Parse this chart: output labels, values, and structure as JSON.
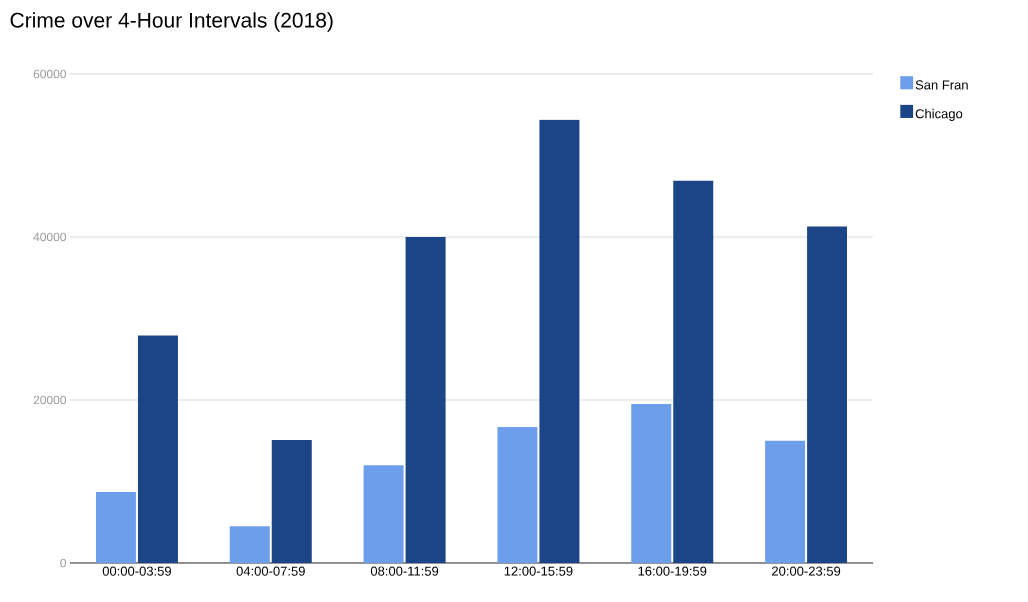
{
  "chart_data": {
    "type": "bar",
    "title": "Crime over 4-Hour Intervals (2018)",
    "categories": [
      "00:00-03:59",
      "04:00-07:59",
      "08:00-11:59",
      "12:00-15:59",
      "16:00-19:59",
      "20:00-23:59"
    ],
    "series": [
      {
        "name": "San Fran",
        "color": "#6d9eeb",
        "values": [
          8700,
          4500,
          12000,
          16700,
          19500,
          15000
        ]
      },
      {
        "name": "Chicago",
        "color": "#1c4587",
        "values": [
          27900,
          15100,
          40000,
          54400,
          46900,
          41300
        ]
      }
    ],
    "ylim": [
      0,
      60000
    ],
    "yticks": [
      0,
      20000,
      40000,
      60000
    ],
    "grid": "y",
    "legend": "top right"
  }
}
